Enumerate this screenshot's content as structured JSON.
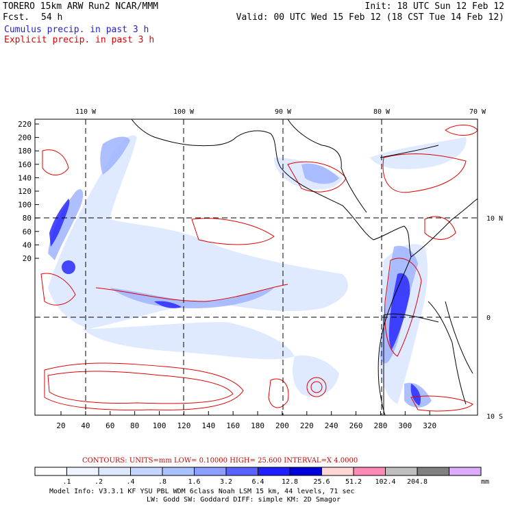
{
  "header": {
    "model": "TORERO  15km ARW   Run2    NCAR/MMM",
    "init": "Init: 18 UTC Sun 12 Feb 12",
    "fcst_label": "Fcst.",
    "fcst_value": "54 h",
    "valid": "Valid: 00 UTC Wed 15 Feb 12 (18 CST Tue 14 Feb 12)"
  },
  "legend_lines": [
    {
      "text": "Cumulus precip. in past 3 h",
      "color": "#2222cc"
    },
    {
      "text": "Explicit precip. in past 3 h",
      "color": "#dd0000"
    }
  ],
  "map": {
    "top_lon_labels": [
      "110 W",
      "100 W",
      "90 W",
      "80 W",
      "70 W"
    ],
    "right_lat_labels": [
      "10 N",
      "0",
      "10 S"
    ],
    "x_ticks": [
      "20",
      "40",
      "60",
      "80",
      "100",
      "120",
      "140",
      "160",
      "180",
      "200",
      "220",
      "240",
      "260",
      "280",
      "300",
      "320"
    ],
    "y_ticks": [
      "220",
      "200",
      "180",
      "160",
      "140",
      "120",
      "100",
      "80",
      "60",
      "40",
      "20"
    ]
  },
  "contours": {
    "text": "CONTOURS:  UNITS=mm  LOW= 0.10000      HIGH=  25.600      INTERVAL=X  4.0000"
  },
  "colorbar": {
    "colors": [
      "#ffffff",
      "#eef4ff",
      "#dde7ff",
      "#c4d6ff",
      "#a9c2ff",
      "#8c9cff",
      "#5a63ff",
      "#2020ff",
      "#0000d8",
      "#ffd6d6",
      "#ff8ab8",
      "#bfbfbf",
      "#808080",
      "#dcaaff"
    ],
    "labels": [
      ".1",
      ".2",
      ".4",
      ".8",
      "1.6",
      "3.2",
      "6.4",
      "12.8",
      "25.6",
      "51.2",
      "102.4",
      "204.8"
    ],
    "unit": "mm"
  },
  "model_info": {
    "line1": "Model Info: V3.3.1   KF     YSU PBL  WDM 6class  Noah LSM  15 km,    44 levels,    71 sec",
    "line2": "LW: Godd SW: Goddard DIFF: simple KM: 2D Smagor"
  }
}
